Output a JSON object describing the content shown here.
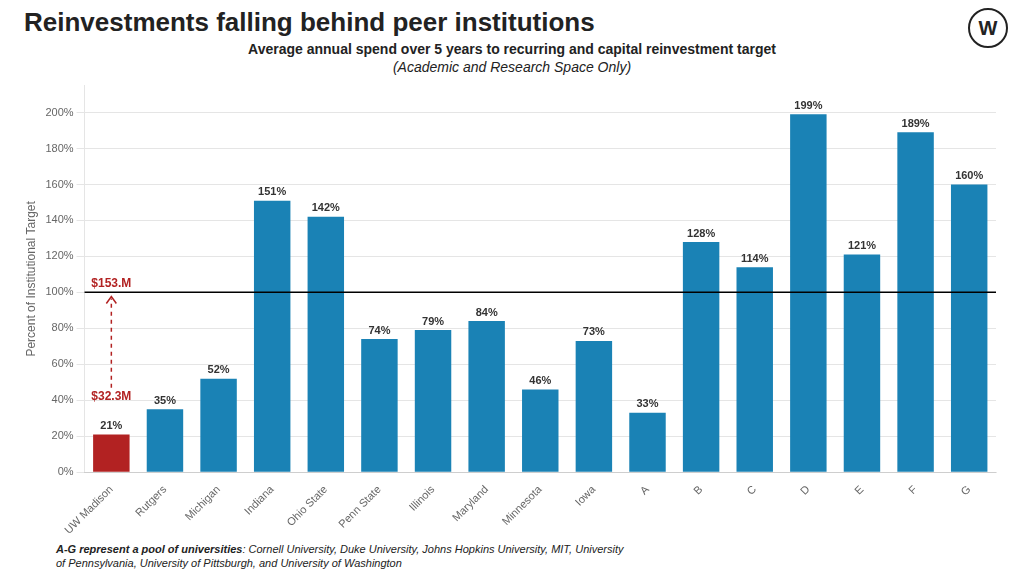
{
  "chart_data": {
    "type": "bar",
    "title": "Reinvestments falling behind peer institutions",
    "subtitle": [
      "Average annual spend over 5 years to recurring and capital reinvestment target",
      "(Academic and Research Space Only)"
    ],
    "ylabel": "Percent of Institutional Target",
    "footnote": [
      "A-G represent a pool of universities",
      ": Cornell University, Duke University, Johns Hopkins University, MIT, University\nof Pennsylvania, University of Pittsburgh, and University of Washington"
    ],
    "badge": "W",
    "categories": [
      "UW Madison",
      "Rutgers",
      "Michigan",
      "Indiana",
      "Ohio State",
      "Penn State",
      "Illinois",
      "Maryland",
      "Minnesota",
      "Iowa",
      "A",
      "B",
      "C",
      "D",
      "E",
      "F",
      "G"
    ],
    "values": [
      21,
      35,
      52,
      151,
      142,
      74,
      79,
      84,
      46,
      73,
      33,
      128,
      114,
      199,
      121,
      189,
      160
    ],
    "value_labels": [
      "21%",
      "35%",
      "52%",
      "151%",
      "142%",
      "74%",
      "79%",
      "84%",
      "46%",
      "73%",
      "33%",
      "128%",
      "114%",
      "199%",
      "121%",
      "189%",
      "160%"
    ],
    "colors": [
      "#b22222",
      "#1a82b5",
      "#1a82b5",
      "#1a82b5",
      "#1a82b5",
      "#1a82b5",
      "#1a82b5",
      "#1a82b5",
      "#1a82b5",
      "#1a82b5",
      "#1a82b5",
      "#1a82b5",
      "#1a82b5",
      "#1a82b5",
      "#1a82b5",
      "#1a82b5",
      "#1a82b5"
    ],
    "data_labels": true,
    "reference_line": 100,
    "annotations": [
      {
        "text": "$153.M",
        "y": 101
      },
      {
        "text": "$32.3M",
        "y": 38
      }
    ],
    "ylim": [
      0,
      215
    ],
    "yticks": [
      {
        "value": 0,
        "label": "0%"
      },
      {
        "value": 20,
        "label": "20%"
      },
      {
        "value": 40,
        "label": "40%"
      },
      {
        "value": 60,
        "label": "60%"
      },
      {
        "value": 80,
        "label": "80%"
      },
      {
        "value": 100,
        "label": "100%"
      },
      {
        "value": 120,
        "label": "120%"
      },
      {
        "value": 140,
        "label": "140%"
      },
      {
        "value": 160,
        "label": "160%"
      },
      {
        "value": 180,
        "label": "180%"
      },
      {
        "value": 200,
        "label": "200%"
      }
    ],
    "grid": true
  }
}
